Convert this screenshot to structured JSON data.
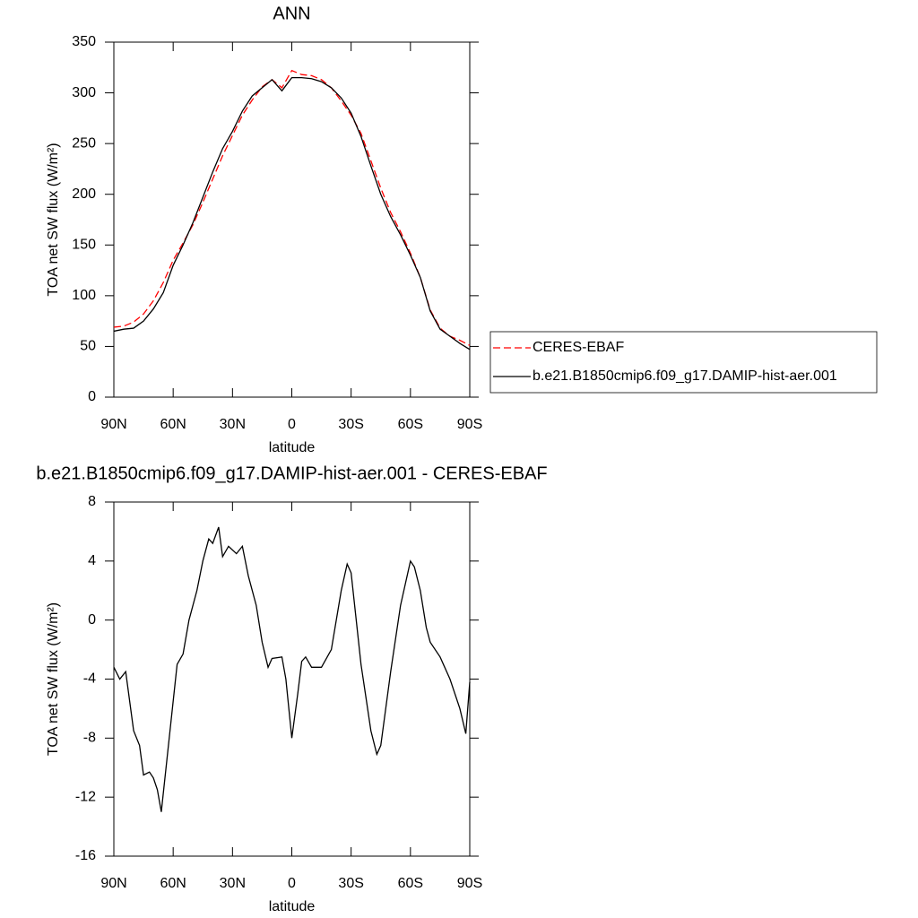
{
  "chart_data": [
    {
      "type": "line",
      "title": "ANN",
      "xlabel": "latitude",
      "ylabel": "TOA net SW flux (W/m²)",
      "x": [
        90,
        85,
        80,
        75,
        70,
        65,
        60,
        55,
        50,
        45,
        40,
        35,
        30,
        25,
        20,
        15,
        10,
        5,
        0,
        -5,
        -10,
        -15,
        -20,
        -25,
        -30,
        -35,
        -40,
        -45,
        -50,
        -55,
        -60,
        -65,
        -70,
        -75,
        -80,
        -85,
        -90
      ],
      "series": [
        {
          "name": "CERES-EBAF",
          "color": "#ff0000",
          "dash": true,
          "values": [
            69,
            70,
            74,
            82,
            95,
            113,
            135,
            152,
            170,
            192,
            215,
            238,
            258,
            278,
            293,
            306,
            313,
            305,
            322,
            318,
            317,
            313,
            305,
            292,
            278,
            260,
            233,
            206,
            182,
            163,
            142,
            118,
            86,
            68,
            60,
            56,
            51
          ]
        },
        {
          "name": "b.e21.B1850cmip6.f09_g17.DAMIP-hist-aer.001",
          "color": "#000000",
          "dash": false,
          "values": [
            65,
            67,
            68,
            75,
            87,
            103,
            130,
            150,
            172,
            197,
            222,
            245,
            262,
            282,
            297,
            305,
            313,
            302,
            315,
            315,
            314,
            311,
            305,
            295,
            280,
            257,
            228,
            200,
            178,
            160,
            140,
            118,
            85,
            67,
            60,
            53,
            47
          ]
        }
      ],
      "xlim": [
        90,
        -90
      ],
      "xticks": [
        {
          "value": 90,
          "label": "90N"
        },
        {
          "value": 60,
          "label": "60N"
        },
        {
          "value": 30,
          "label": "30N"
        },
        0,
        {
          "value": -30,
          "label": "30S"
        },
        {
          "value": -60,
          "label": "60S"
        },
        {
          "value": -90,
          "label": "90S"
        }
      ],
      "ylim": [
        0,
        350
      ],
      "yticks": [
        0,
        50,
        100,
        150,
        200,
        250,
        300,
        350
      ],
      "legend": "right"
    },
    {
      "type": "line",
      "title": "b.e21.B1850cmip6.f09_g17.DAMIP-hist-aer.001 - CERES-EBAF",
      "xlabel": "latitude",
      "ylabel": "TOA net SW flux (W/m²)",
      "x": [
        90,
        87,
        84,
        80,
        77,
        75,
        72,
        70,
        68,
        66,
        62,
        58,
        55,
        52,
        48,
        45,
        42,
        40,
        37,
        35,
        32,
        28,
        25,
        22,
        18,
        15,
        12,
        10,
        5,
        3,
        0,
        -3,
        -5,
        -7,
        -10,
        -15,
        -20,
        -25,
        -28,
        -30,
        -35,
        -40,
        -43,
        -45,
        -50,
        -55,
        -60,
        -62,
        -65,
        -68,
        -70,
        -75,
        -80,
        -85,
        -88,
        -90
      ],
      "values": [
        -3.2,
        -4.0,
        -3.5,
        -7.5,
        -8.5,
        -10.5,
        -10.3,
        -10.7,
        -11.5,
        -13,
        -8,
        -3,
        -2.3,
        0,
        2,
        4,
        5.5,
        5.2,
        6.3,
        4.3,
        5,
        4.5,
        5,
        3,
        1,
        -1.5,
        -3.2,
        -2.6,
        -2.5,
        -4,
        -8,
        -5,
        -2.8,
        -2.5,
        -3.2,
        -3.2,
        -2,
        2,
        3.8,
        3.2,
        -3,
        -7.5,
        -9.1,
        -8.5,
        -3.5,
        1,
        4,
        3.6,
        2,
        -0.5,
        -1.5,
        -2.5,
        -4,
        -6,
        -7.7,
        -4.2
      ],
      "color": "#000000",
      "xlim": [
        90,
        -90
      ],
      "xticks": [
        {
          "value": 90,
          "label": "90N"
        },
        {
          "value": 60,
          "label": "60N"
        },
        {
          "value": 30,
          "label": "30N"
        },
        0,
        {
          "value": -30,
          "label": "30S"
        },
        {
          "value": -60,
          "label": "60S"
        },
        {
          "value": -90,
          "label": "90S"
        }
      ],
      "ylim": [
        -16,
        8
      ],
      "yticks": [
        -16,
        -12,
        -8,
        -4,
        0,
        4,
        8
      ]
    }
  ]
}
